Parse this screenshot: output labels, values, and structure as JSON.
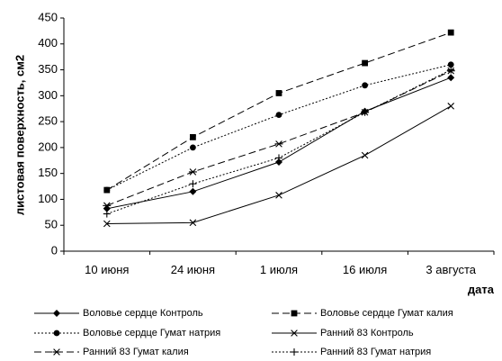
{
  "chart_data": {
    "type": "line",
    "title": "",
    "ylabel": "листовая поверхность, см2",
    "xlabel": "дата",
    "categories": [
      "10 июня",
      "24 июня",
      "1 июля",
      "16 июля",
      "3 августа"
    ],
    "ylim": [
      0,
      450
    ],
    "yticks": [
      0,
      50,
      100,
      150,
      200,
      250,
      300,
      350,
      400,
      450
    ],
    "grid": false,
    "legend_position": "bottom",
    "series": [
      {
        "name": "Воловье сердце Контроль",
        "values": [
          82,
          115,
          172,
          270,
          335
        ],
        "marker": "diamond",
        "dash": "solid",
        "color": "#000000"
      },
      {
        "name": "Воловье сердце Гумат калия",
        "values": [
          118,
          220,
          305,
          363,
          422
        ],
        "marker": "square",
        "dash": "long-dash",
        "color": "#000000"
      },
      {
        "name": "Воловье сердце Гумат натрия",
        "values": [
          118,
          200,
          263,
          320,
          360
        ],
        "marker": "circle",
        "dash": "dotted",
        "color": "#000000"
      },
      {
        "name": "Ранний 83 Контроль",
        "values": [
          53,
          55,
          108,
          185,
          280
        ],
        "marker": "x",
        "dash": "solid",
        "color": "#000000"
      },
      {
        "name": "Ранний 83 Гумат калия",
        "values": [
          88,
          153,
          207,
          268,
          348
        ],
        "marker": "asterisk",
        "dash": "long-dash",
        "color": "#000000"
      },
      {
        "name": "Ранний 83 Гумат натрия",
        "values": [
          72,
          130,
          180,
          268,
          350
        ],
        "marker": "plus",
        "dash": "dotted",
        "color": "#000000"
      }
    ]
  }
}
